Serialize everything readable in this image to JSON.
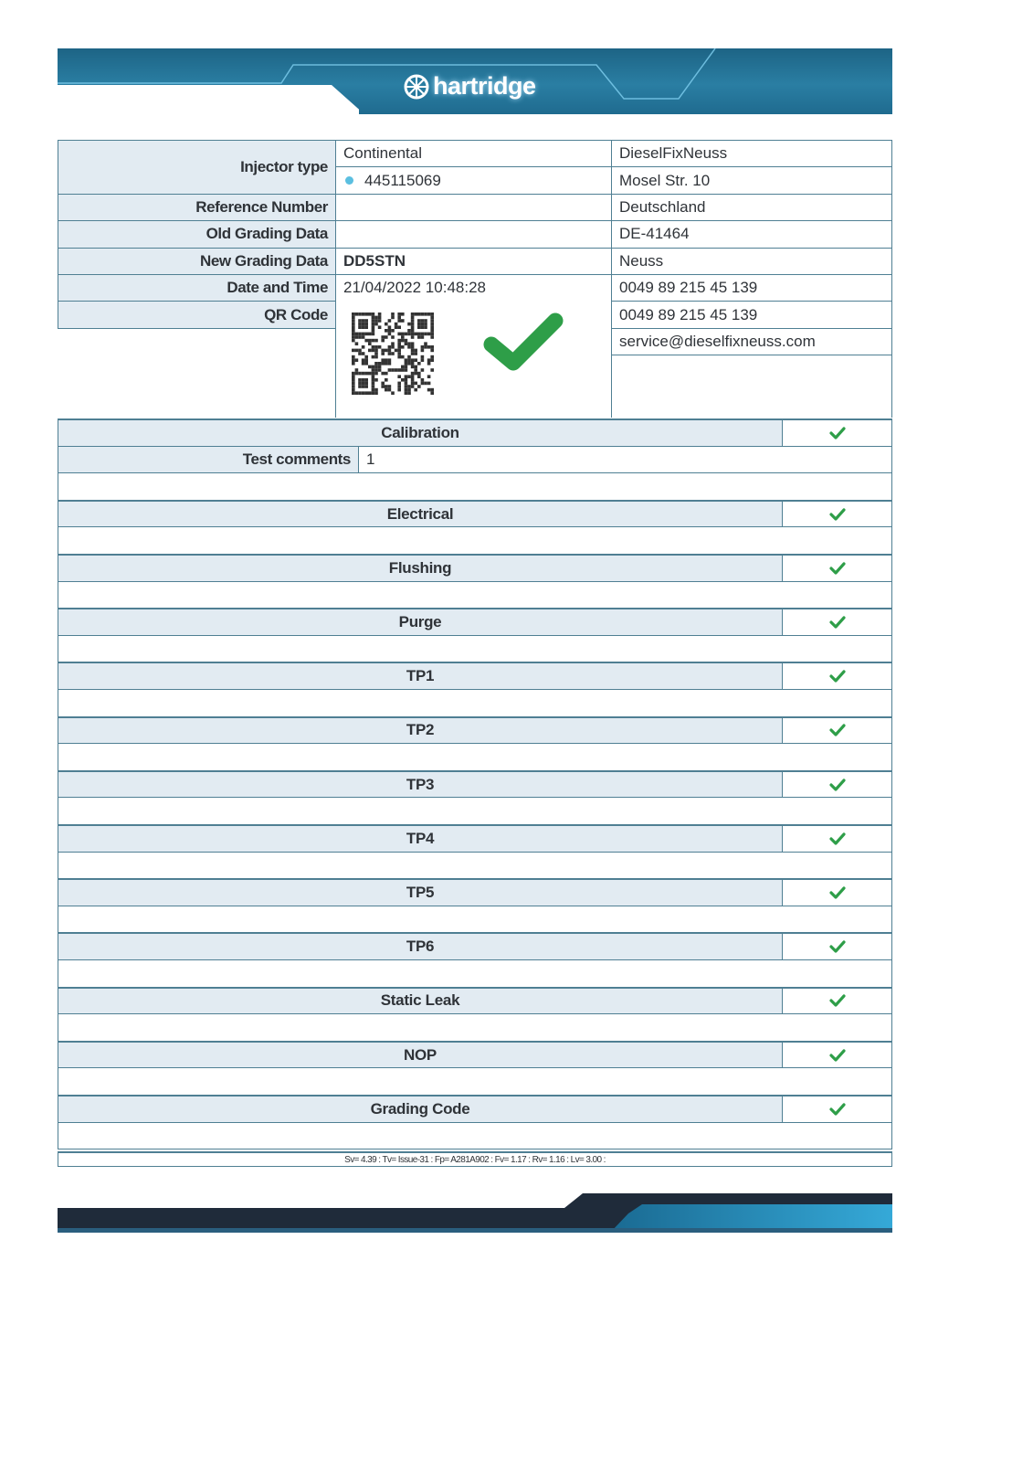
{
  "brand": {
    "name": "hartridge",
    "accent": "#2a7ea3"
  },
  "info": {
    "labels": {
      "injector_type": "Injector type",
      "reference_number": "Reference Number",
      "old_grading": "Old Grading Data",
      "new_grading": "New Grading Data",
      "date_time": "Date and Time",
      "qr_code": "QR Code"
    },
    "manufacturer": "Continental",
    "part_number": "445115069",
    "reference_number": "",
    "old_grading": "",
    "new_grading": "DD5STN",
    "date_time": "21/04/2022 10:48:28",
    "overall_result": "pass"
  },
  "company": [
    "DieselFixNeuss",
    "Mosel Str. 10",
    "Deutschland",
    "DE-41464",
    "Neuss",
    "0049 89 215 45 139",
    "0049 89 215 45 139",
    "service@dieselfixneuss.com"
  ],
  "test_comments": {
    "label": "Test comments",
    "value": "1"
  },
  "sections": [
    {
      "name": "Calibration",
      "status": "pass"
    },
    {
      "name": "Electrical",
      "status": "pass"
    },
    {
      "name": "Flushing",
      "status": "pass"
    },
    {
      "name": "Purge",
      "status": "pass"
    },
    {
      "name": "TP1",
      "status": "pass"
    },
    {
      "name": "TP2",
      "status": "pass"
    },
    {
      "name": "TP3",
      "status": "pass"
    },
    {
      "name": "TP4",
      "status": "pass"
    },
    {
      "name": "TP5",
      "status": "pass"
    },
    {
      "name": "TP6",
      "status": "pass"
    },
    {
      "name": "Static Leak",
      "status": "pass"
    },
    {
      "name": "NOP",
      "status": "pass"
    },
    {
      "name": "Grading Code",
      "status": "pass"
    }
  ],
  "versions": "Sv= 4.39  :  Tv= Issue-31  :  Fp= A281A902  :  Fv= 1.17  :  Rv= 1.16  :  Lv= 3.00  :",
  "colors": {
    "pass": "#2e9e48",
    "header_cell": "#e2ebf2",
    "border": "#4f7f93"
  }
}
